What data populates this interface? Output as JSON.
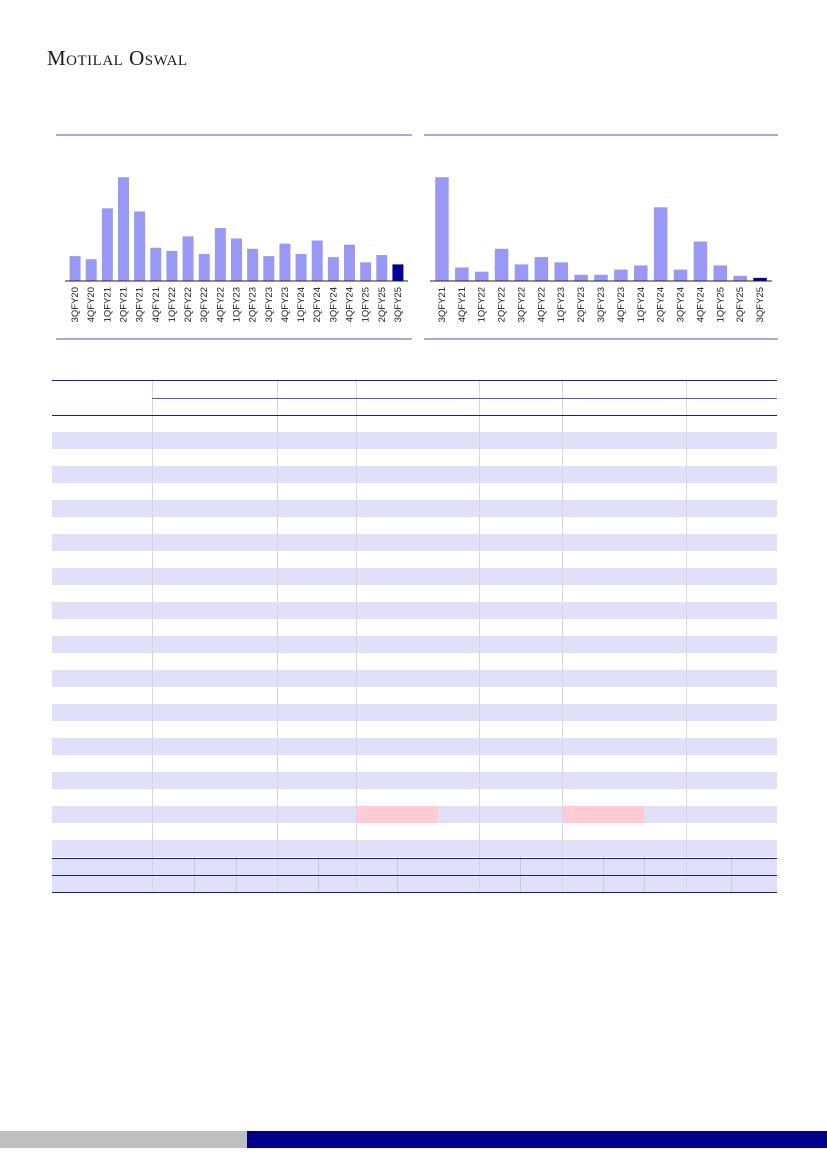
{
  "header": {
    "logo_text": "Motilal Oswal"
  },
  "colors": {
    "bar": "#9999f5",
    "bar_highlight": "#000099",
    "rule": "#5555aa",
    "band": "#e0e0f8",
    "pink": "#ffccd6",
    "footer_blue": "#00008b",
    "footer_grey": "#bfbfbf"
  },
  "chart_data": [
    {
      "type": "bar",
      "title": "",
      "xlabel": "",
      "ylabel": "",
      "categories": [
        "3QFY20",
        "4QFY20",
        "1QFY21",
        "2QFY21",
        "3QFY21",
        "4QFY21",
        "1QFY22",
        "2QFY22",
        "3QFY22",
        "4QFY22",
        "1QFY23",
        "2QFY23",
        "3QFY23",
        "4QFY23",
        "1QFY24",
        "2QFY24",
        "3QFY24",
        "4QFY24",
        "1QFY25",
        "2QFY25",
        "3QFY25"
      ],
      "values": [
        24,
        21,
        70,
        100,
        67,
        32,
        29,
        43,
        26,
        51,
        41,
        31,
        24,
        36,
        26,
        39,
        23,
        35,
        18,
        25,
        16
      ],
      "highlight_last": true,
      "ylim": [
        0,
        105
      ]
    },
    {
      "type": "bar",
      "title": "",
      "xlabel": "",
      "ylabel": "",
      "categories": [
        "3QFY21",
        "4QFY21",
        "1QFY22",
        "2QFY22",
        "3QFY22",
        "4QFY22",
        "1QFY23",
        "2QFY23",
        "3QFY23",
        "4QFY23",
        "1QFY24",
        "2QFY24",
        "3QFY24",
        "4QFY24",
        "1QFY25",
        "2QFY25",
        "3QFY25"
      ],
      "values": [
        100,
        13,
        9,
        31,
        16,
        23,
        18,
        6,
        6,
        11,
        15,
        71,
        11,
        38,
        15,
        5,
        3
      ],
      "highlight_last": true,
      "ylim": [
        0,
        105
      ]
    }
  ]
}
